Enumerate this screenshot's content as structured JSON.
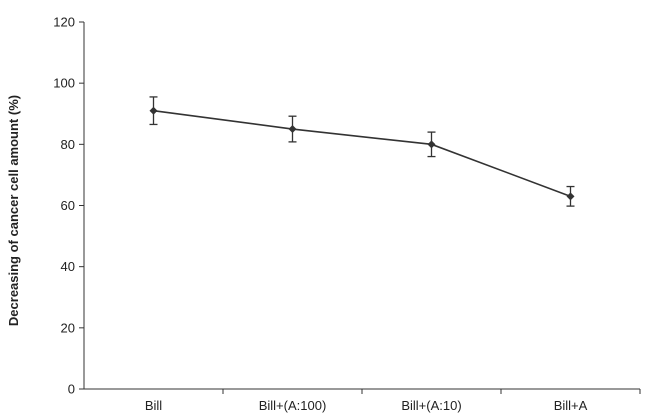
{
  "chart_data": {
    "type": "line",
    "title": "",
    "xlabel": "",
    "ylabel": "Decreasing of cancer cell amount (%)",
    "categories": [
      "Bill",
      "Bill+(A:100)",
      "Bill+(A:10)",
      "Bill+A"
    ],
    "series": [
      {
        "values": [
          91,
          85,
          80,
          63
        ],
        "error": [
          4.5,
          4.2,
          4.0,
          3.2
        ]
      }
    ],
    "ylim": [
      0,
      120
    ],
    "yticks": [
      "0",
      "20",
      "40",
      "60",
      "80",
      "100",
      "120"
    ],
    "grid": false,
    "legend": "none",
    "colors": {
      "line": "#333333",
      "axis": "#333333",
      "text": "#222222"
    }
  }
}
